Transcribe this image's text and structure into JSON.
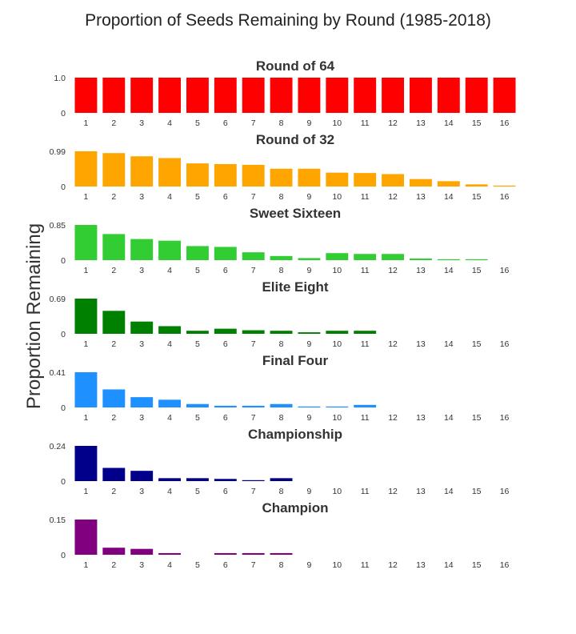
{
  "chart_data": {
    "type": "bar",
    "title": "Proportion of Seeds Remaining by Round (1985-2018)",
    "ylabel": "Proportion Remaining",
    "xlabel": "",
    "categories": [
      "1",
      "2",
      "3",
      "4",
      "5",
      "6",
      "7",
      "8",
      "9",
      "10",
      "11",
      "12",
      "13",
      "14",
      "15",
      "16"
    ],
    "panels": [
      {
        "name": "Round of 64",
        "color": "#ff0000",
        "ymax": 1.0,
        "ytick_labels": [
          "0",
          "1.0"
        ],
        "values": [
          1,
          1,
          1,
          1,
          1,
          1,
          1,
          1,
          1,
          1,
          1,
          1,
          1,
          1,
          1,
          1
        ]
      },
      {
        "name": "Round of 32",
        "color": "#ffa500",
        "ymax": 0.99,
        "ytick_labels": [
          "0",
          "0.99"
        ],
        "values": [
          0.99,
          0.94,
          0.85,
          0.8,
          0.65,
          0.63,
          0.61,
          0.5,
          0.5,
          0.39,
          0.38,
          0.35,
          0.21,
          0.15,
          0.06,
          0.01
        ]
      },
      {
        "name": "Sweet Sixteen",
        "color": "#32cd32",
        "ymax": 0.85,
        "ytick_labels": [
          "0",
          "0.85"
        ],
        "values": [
          0.85,
          0.63,
          0.51,
          0.47,
          0.34,
          0.32,
          0.19,
          0.1,
          0.05,
          0.17,
          0.15,
          0.15,
          0.04,
          0.02,
          0.01,
          0
        ]
      },
      {
        "name": "Elite Eight",
        "color": "#008000",
        "ymax": 0.69,
        "ytick_labels": [
          "0",
          "0.69"
        ],
        "values": [
          0.69,
          0.45,
          0.24,
          0.15,
          0.06,
          0.1,
          0.07,
          0.06,
          0.03,
          0.06,
          0.06,
          0,
          0,
          0,
          0,
          0
        ]
      },
      {
        "name": "Final Four",
        "color": "#1e90ff",
        "ymax": 0.41,
        "ytick_labels": [
          "0",
          "0.41"
        ],
        "values": [
          0.41,
          0.21,
          0.12,
          0.09,
          0.04,
          0.02,
          0.02,
          0.04,
          0.01,
          0.01,
          0.03,
          0,
          0,
          0,
          0,
          0
        ]
      },
      {
        "name": "Championship",
        "color": "#00008b",
        "ymax": 0.24,
        "ytick_labels": [
          "0",
          "0.24"
        ],
        "values": [
          0.24,
          0.09,
          0.07,
          0.02,
          0.02,
          0.015,
          0.005,
          0.02,
          0,
          0,
          0,
          0,
          0,
          0,
          0,
          0
        ]
      },
      {
        "name": "Champion",
        "color": "#800080",
        "ymax": 0.15,
        "ytick_labels": [
          "0",
          "0.15"
        ],
        "values": [
          0.15,
          0.03,
          0.025,
          0.007,
          0,
          0.007,
          0.007,
          0.007,
          0,
          0,
          0,
          0,
          0,
          0,
          0,
          0
        ]
      }
    ]
  }
}
